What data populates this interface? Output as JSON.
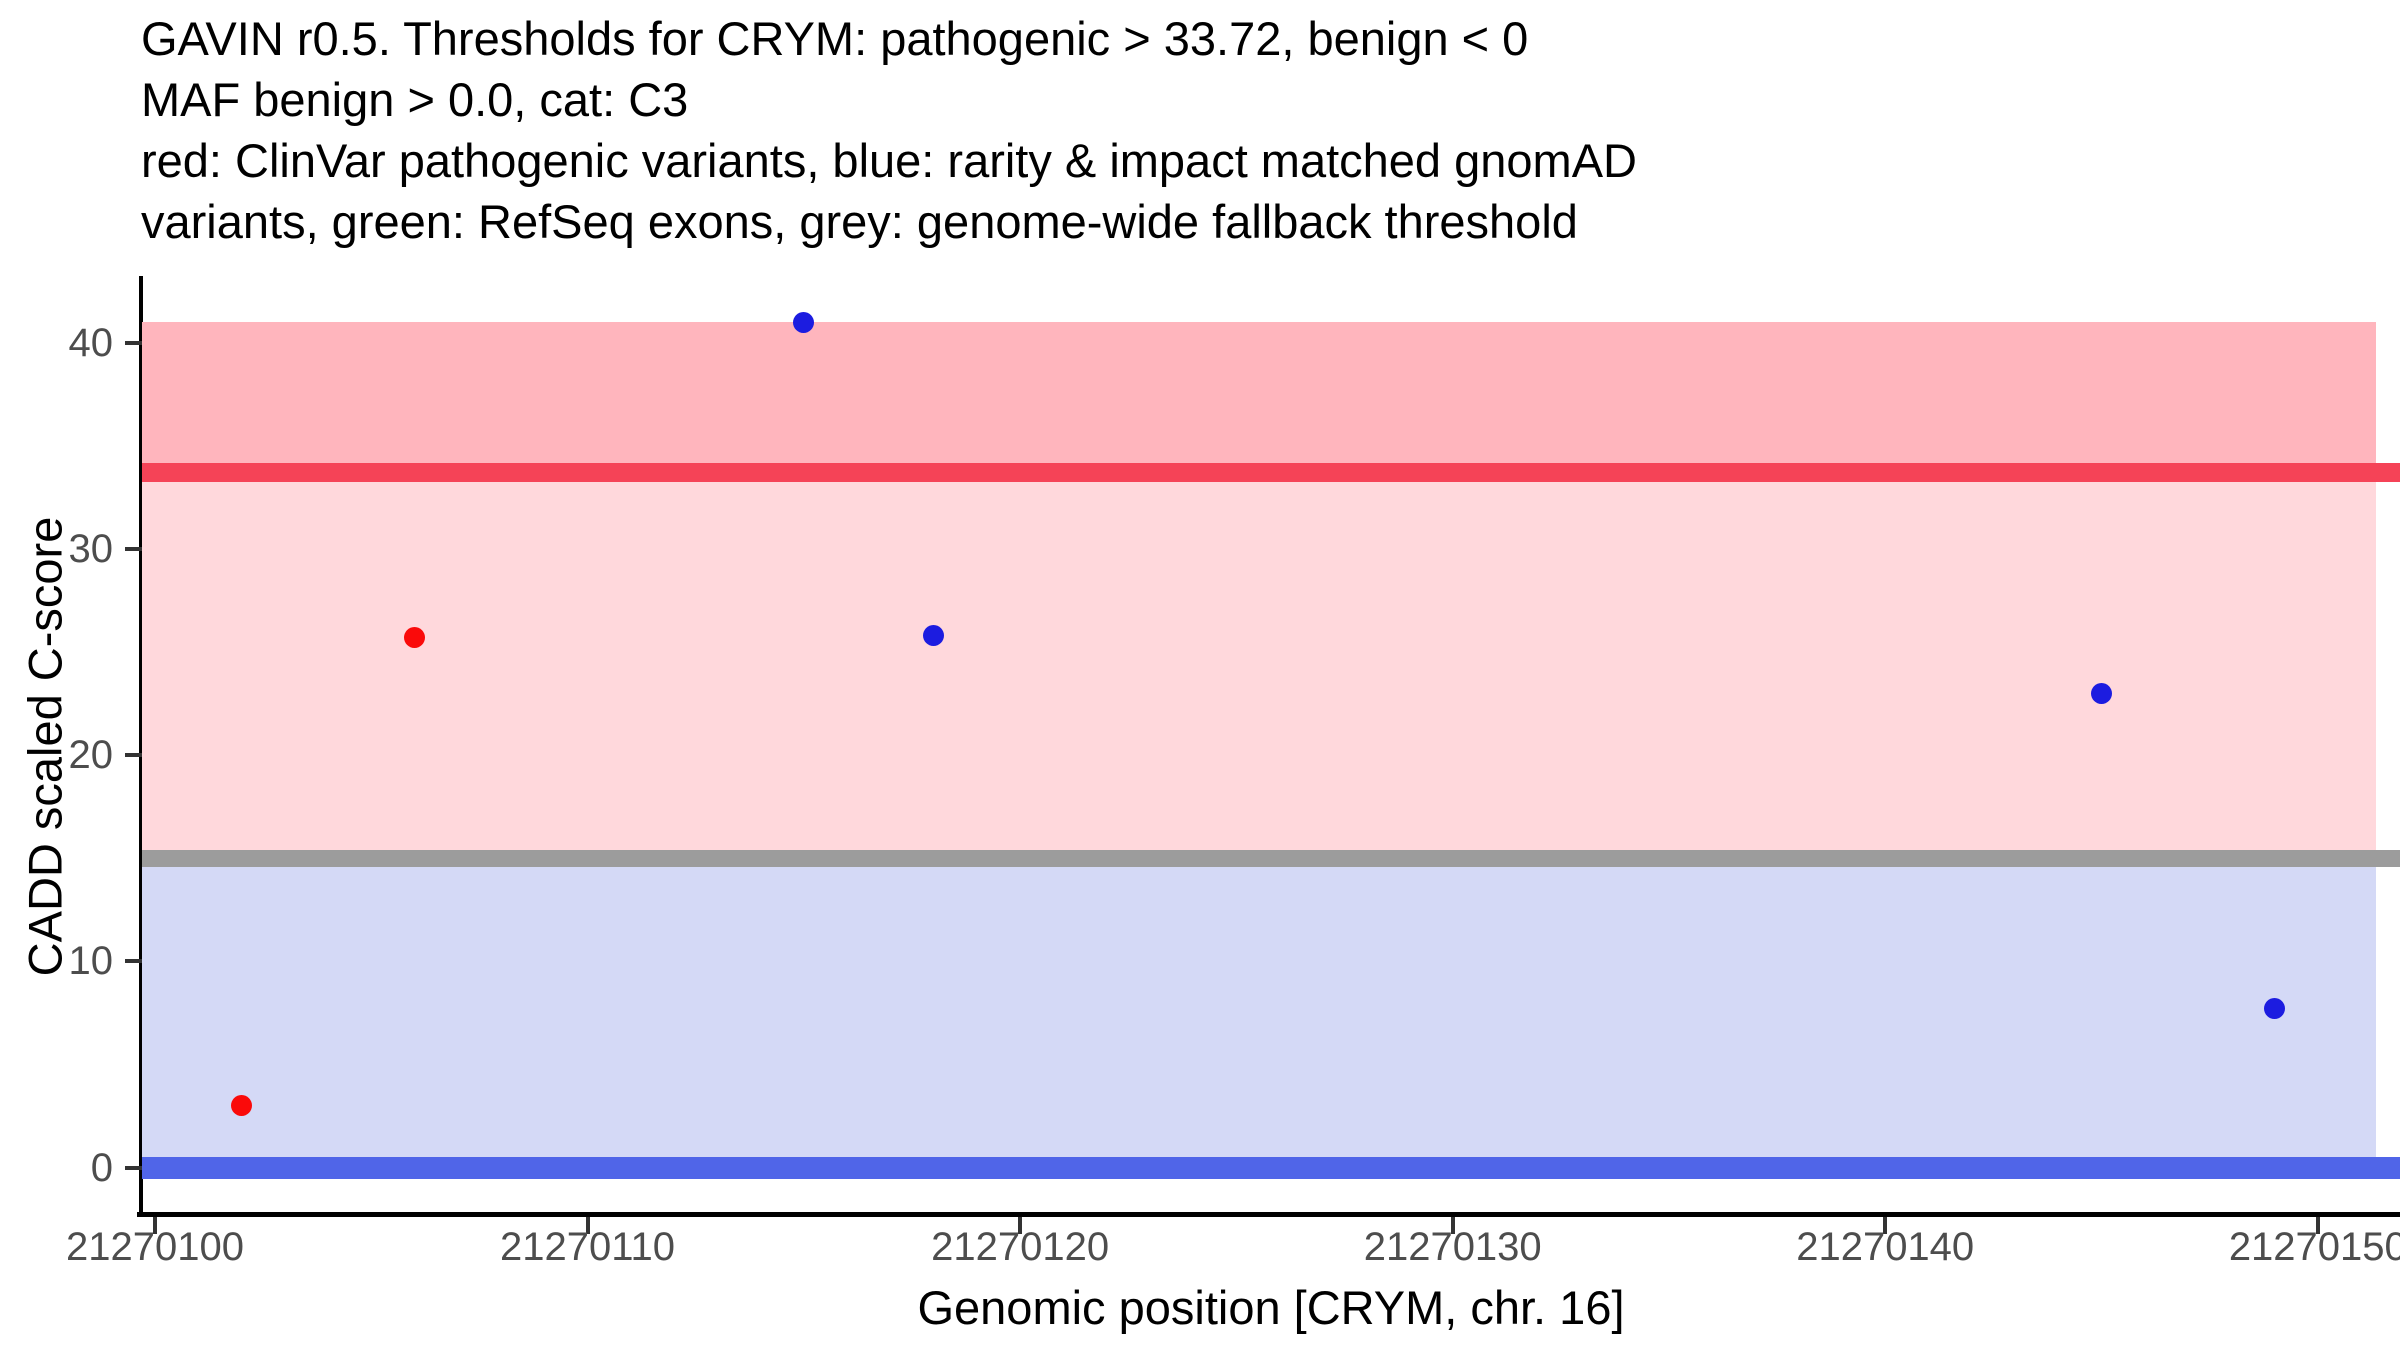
{
  "chart_data": {
    "type": "scatter",
    "title_lines": [
      "GAVIN r0.5. Thresholds for CRYM: pathogenic > 33.72, benign < 0",
      "MAF benign > 0.0, cat: C3",
      "red: ClinVar pathogenic variants, blue: rarity & impact matched gnomAD",
      "variants, green: RefSeq exons, grey: genome-wide fallback threshold"
    ],
    "xlabel": "Genomic position [CRYM, chr. 16]",
    "ylabel": "CADD scaled C-score",
    "x_axis": {
      "min": 21270099.7,
      "max": 21270151.9,
      "ticks": [
        21270100,
        21270110,
        21270120,
        21270130,
        21270140,
        21270150
      ]
    },
    "y_axis": {
      "min": -2.25,
      "max": 43.15,
      "ticks": [
        0,
        10,
        20,
        30,
        40
      ]
    },
    "grid": false,
    "legend_position": "none",
    "bands": [
      {
        "name": "pathogenic-zone",
        "y_from": 33.72,
        "y_to": 41.0,
        "color": "#ffb5bd"
      },
      {
        "name": "vus-zone",
        "y_from": 15,
        "y_to": 33.72,
        "color": "#ffd8dc"
      },
      {
        "name": "benign-zone",
        "y_from": 0,
        "y_to": 15,
        "color": "#d4d9f6"
      }
    ],
    "band_x_range": [
      21270099.7,
      21270151.35
    ],
    "thresholds": [
      {
        "name": "pathogenic-threshold",
        "y": 33.72,
        "color": "#f54357"
      },
      {
        "name": "genome-wide-fallback-threshold",
        "y": 15,
        "color": "#9c9c9c"
      },
      {
        "name": "benign-threshold",
        "y": 0,
        "color": "#5065e8"
      }
    ],
    "series": [
      {
        "name": "ClinVar pathogenic variants",
        "color": "#fa0a0a",
        "points": [
          {
            "x": 21270102,
            "y": 3.0
          },
          {
            "x": 21270106,
            "y": 25.7
          }
        ]
      },
      {
        "name": "rarity & impact matched gnomAD variants",
        "color": "#1c1ce0",
        "points": [
          {
            "x": 21270115,
            "y": 41.0
          },
          {
            "x": 21270118,
            "y": 25.8
          },
          {
            "x": 21270145,
            "y": 23.0
          },
          {
            "x": 21270149,
            "y": 7.7
          }
        ]
      }
    ],
    "colors": {
      "axis_line": "#000000",
      "tick_mark": "#333333",
      "tick_label": "#4d4d4d",
      "title_text": "#000000",
      "background": "#ffffff"
    }
  }
}
